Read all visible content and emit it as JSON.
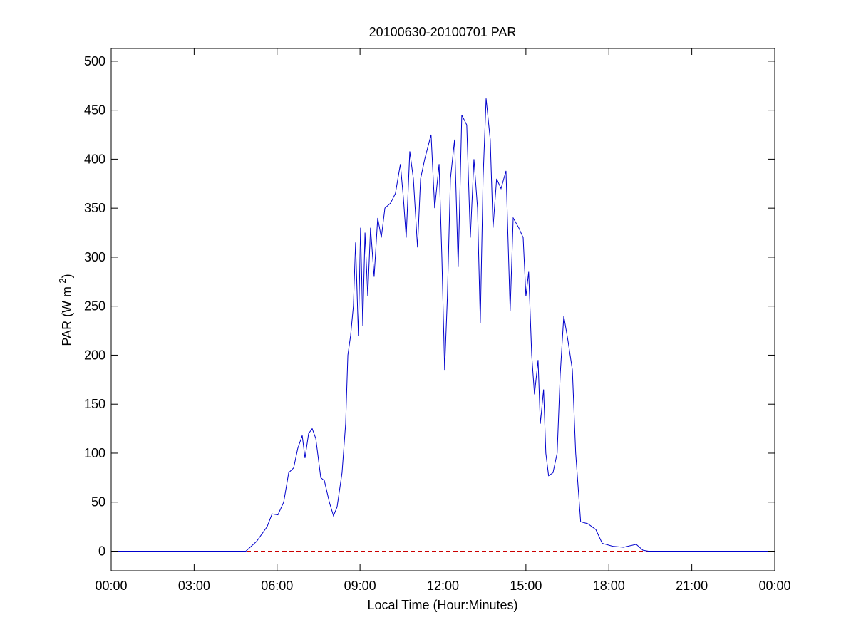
{
  "chart_data": {
    "type": "line",
    "title": "20100630-20100701 PAR",
    "xlabel": "Local Time (Hour:Minutes)",
    "ylabel_parts": [
      "PAR (W m",
      "-2",
      ")"
    ],
    "xlim": [
      0,
      24
    ],
    "xticks": [
      {
        "value": 0,
        "label": "00:00"
      },
      {
        "value": 3,
        "label": "03:00"
      },
      {
        "value": 6,
        "label": "06:00"
      },
      {
        "value": 9,
        "label": "09:00"
      },
      {
        "value": 12,
        "label": "12:00"
      },
      {
        "value": 15,
        "label": "15:00"
      },
      {
        "value": 18,
        "label": "18:00"
      },
      {
        "value": 21,
        "label": "21:00"
      },
      {
        "value": 24,
        "label": "00:00"
      }
    ],
    "ylim": [
      -20,
      513
    ],
    "yticks": [
      0,
      50,
      100,
      150,
      200,
      250,
      300,
      350,
      400,
      450,
      500
    ],
    "reference_line": {
      "value": 0,
      "color": "#cc0000",
      "dashed": true
    },
    "series": [
      {
        "color": "#0000cc",
        "x": [
          0,
          4.87,
          5.26,
          5.64,
          5.82,
          6.03,
          6.24,
          6.42,
          6.6,
          6.75,
          6.91,
          7.01,
          7.14,
          7.27,
          7.4,
          7.58,
          7.71,
          7.89,
          8.04,
          8.17,
          8.35,
          8.48,
          8.56,
          8.66,
          8.76,
          8.84,
          8.94,
          9.02,
          9.1,
          9.18,
          9.28,
          9.38,
          9.51,
          9.64,
          9.77,
          9.9,
          10.1,
          10.28,
          10.46,
          10.57,
          10.67,
          10.8,
          10.93,
          11.08,
          11.19,
          11.34,
          11.57,
          11.7,
          11.86,
          11.96,
          12.06,
          12.16,
          12.27,
          12.42,
          12.55,
          12.68,
          12.86,
          12.99,
          13.12,
          13.25,
          13.35,
          13.45,
          13.56,
          13.71,
          13.81,
          13.94,
          14.1,
          14.28,
          14.43,
          14.54,
          14.74,
          14.9,
          15.0,
          15.1,
          15.21,
          15.31,
          15.44,
          15.52,
          15.64,
          15.72,
          15.82,
          15.98,
          16.13,
          16.24,
          16.37,
          16.52,
          16.68,
          16.8,
          16.98,
          17.24,
          17.53,
          17.76,
          18.14,
          18.53,
          18.99,
          19.23,
          19.43,
          24
        ],
        "values": [
          0,
          0,
          10,
          25,
          38,
          37,
          50,
          80,
          85,
          105,
          118,
          95,
          120,
          125,
          115,
          75,
          72,
          50,
          36,
          45,
          80,
          130,
          200,
          220,
          250,
          315,
          220,
          330,
          230,
          325,
          260,
          330,
          280,
          340,
          320,
          350,
          355,
          365,
          395,
          360,
          320,
          408,
          380,
          310,
          380,
          400,
          425,
          350,
          395,
          300,
          185,
          260,
          380,
          420,
          290,
          445,
          435,
          320,
          400,
          350,
          233,
          380,
          462,
          420,
          330,
          380,
          370,
          388,
          245,
          340,
          330,
          320,
          260,
          285,
          200,
          160,
          195,
          130,
          165,
          100,
          77,
          80,
          100,
          180,
          240,
          215,
          185,
          100,
          30,
          28,
          22,
          8,
          5,
          4,
          7,
          1,
          0,
          0
        ]
      }
    ]
  }
}
